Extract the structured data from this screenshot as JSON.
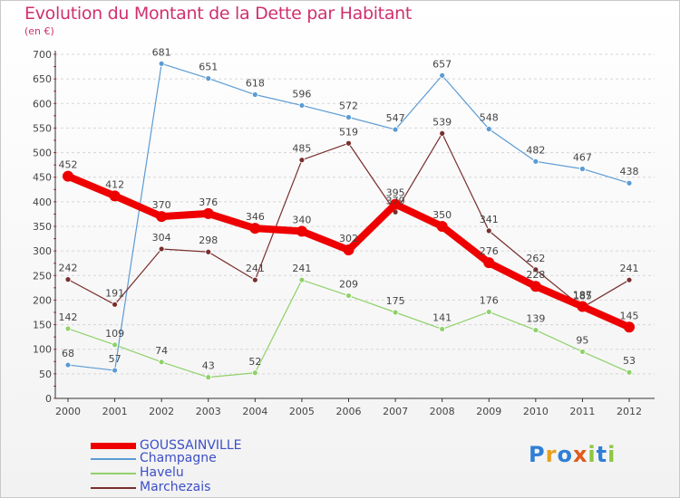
{
  "title": "Evolution du Montant de la Dette par Habitant",
  "subtitle": "(en €)",
  "logo_text": "Proxiti",
  "chart_data": {
    "type": "line",
    "categories": [
      "2000",
      "2001",
      "2002",
      "2003",
      "2004",
      "2005",
      "2006",
      "2007",
      "2008",
      "2009",
      "2010",
      "2011",
      "2012"
    ],
    "ylim": [
      0,
      700
    ],
    "yticks": [
      0,
      50,
      100,
      150,
      200,
      250,
      300,
      350,
      400,
      450,
      500,
      550,
      600,
      650,
      700
    ],
    "grid": true,
    "legend_position": "bottom-left",
    "series": [
      {
        "name": "GOUSSAINVILLE",
        "color": "#ee0000",
        "values": [
          452,
          412,
          370,
          376,
          346,
          340,
          302,
          395,
          350,
          276,
          228,
          187,
          145
        ]
      },
      {
        "name": "Champagne",
        "color": "#5b9bd5",
        "values": [
          68,
          57,
          681,
          651,
          618,
          596,
          572,
          547,
          657,
          548,
          482,
          467,
          438
        ]
      },
      {
        "name": "Havelu",
        "color": "#8fd16a",
        "values": [
          142,
          109,
          74,
          43,
          52,
          241,
          209,
          175,
          141,
          176,
          139,
          95,
          53
        ]
      },
      {
        "name": "Marchezais",
        "color": "#7a2e2e",
        "values": [
          242,
          191,
          304,
          298,
          241,
          485,
          519,
          379,
          539,
          341,
          262,
          185,
          241
        ]
      }
    ]
  }
}
